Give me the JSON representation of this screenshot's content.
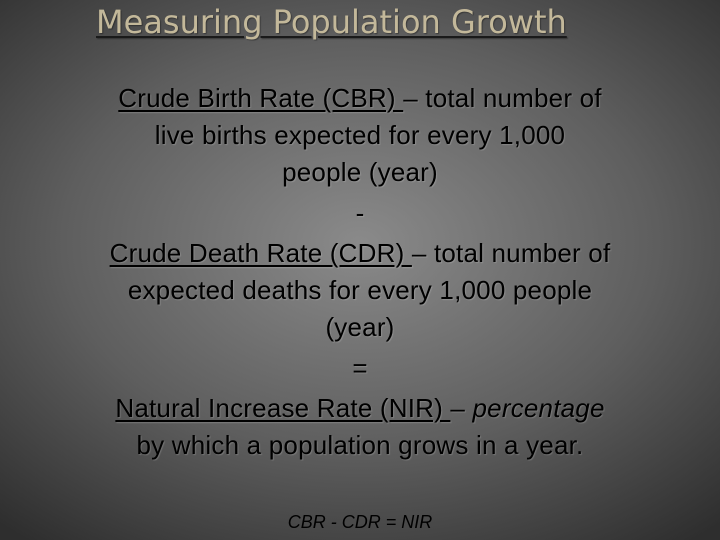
{
  "title": "Measuring Population Growth",
  "cbr": {
    "term": "Crude Birth Rate (CBR) ",
    "dash": "– total number of",
    "line2": "live births expected for every 1,000",
    "line3": "people (year)"
  },
  "minus_symbol": "-",
  "cdr": {
    "term": "Crude Death Rate (CDR) ",
    "dash": "– total number of",
    "line2": "expected deaths for every 1,000 people",
    "line3": "(year)"
  },
  "equals_symbol": "=",
  "nir": {
    "term": "Natural Increase Rate (NIR) ",
    "dash": "– ",
    "emph": "percentage",
    "line2": "by which a population grows in a year."
  },
  "formula": "CBR - CDR = NIR"
}
